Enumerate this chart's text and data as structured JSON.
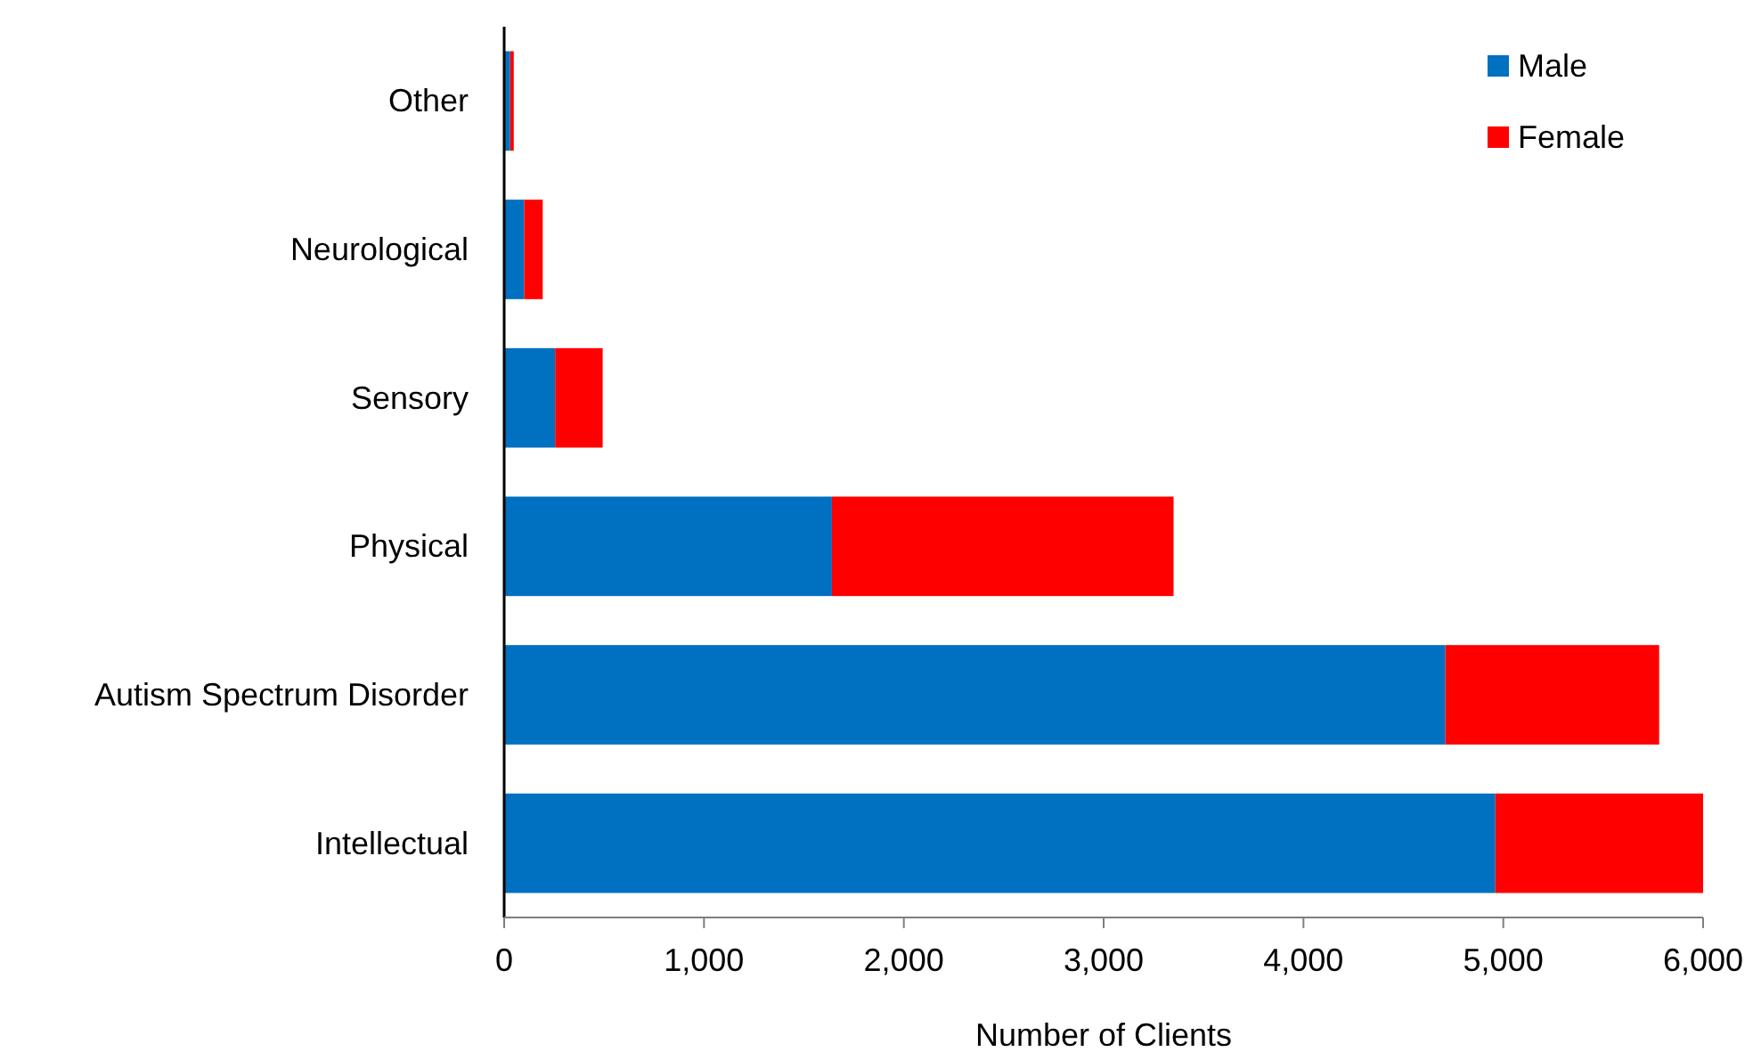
{
  "chart_data": {
    "type": "bar",
    "orientation": "horizontal",
    "stacked": true,
    "xlabel": "Number  of Clients",
    "categories": [
      "Other",
      "Neurological",
      "Sensory",
      "Physical",
      "Autism Spectrum Disorder",
      "Intellectual"
    ],
    "series": [
      {
        "name": "Male",
        "color": "#0070c0",
        "values": [
          30,
          100,
          255,
          1640,
          4710,
          4960
        ]
      },
      {
        "name": "Female",
        "color": "#ff0000",
        "values": [
          18,
          93,
          238,
          1710,
          1070,
          1040
        ]
      }
    ],
    "xlim": [
      0,
      6000
    ],
    "xticks": [
      {
        "value": 0,
        "label": "0"
      },
      {
        "value": 1000,
        "label": "1,000"
      },
      {
        "value": 2000,
        "label": "2,000"
      },
      {
        "value": 3000,
        "label": "3,000"
      },
      {
        "value": 4000,
        "label": "4,000"
      },
      {
        "value": 5000,
        "label": "5,000"
      },
      {
        "value": 6000,
        "label": "6,000"
      }
    ],
    "grid": false,
    "legend": "top right"
  }
}
